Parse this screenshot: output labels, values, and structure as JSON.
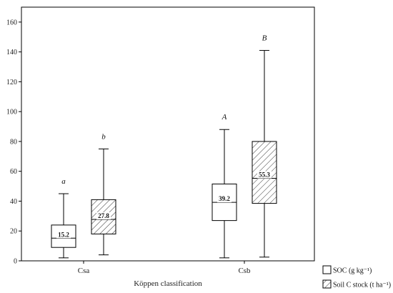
{
  "chart_data": {
    "type": "boxplot",
    "xlabel": "Köppen classification",
    "ylabel": "",
    "ylim": [
      0,
      170
    ],
    "yticks": [
      0,
      20,
      40,
      60,
      80,
      100,
      120,
      140,
      160
    ],
    "categories": [
      "Csa",
      "Csb"
    ],
    "series": [
      {
        "name": "SOC (g kg⁻¹)",
        "pattern": "plain",
        "boxes": [
          {
            "category": "Csa",
            "min": 2,
            "q1": 9,
            "median": 15.2,
            "q3": 24,
            "max": 45,
            "median_label": "15.2",
            "letter": "a"
          },
          {
            "category": "Csb",
            "min": 2,
            "q1": 27,
            "median": 39.2,
            "q3": 51.5,
            "max": 88,
            "median_label": "39.2",
            "letter": "A"
          }
        ]
      },
      {
        "name": "Soil C stock (t ha⁻¹)",
        "pattern": "hatched",
        "boxes": [
          {
            "category": "Csa",
            "min": 4,
            "q1": 18,
            "median": 27.8,
            "q3": 41,
            "max": 75,
            "median_label": "27.8",
            "letter": "b"
          },
          {
            "category": "Csb",
            "min": 2.5,
            "q1": 38.5,
            "median": 55.3,
            "q3": 80,
            "max": 141,
            "median_label": "55.3",
            "letter": "B"
          }
        ]
      }
    ],
    "legend_position": "bottom-right",
    "grid": false
  }
}
